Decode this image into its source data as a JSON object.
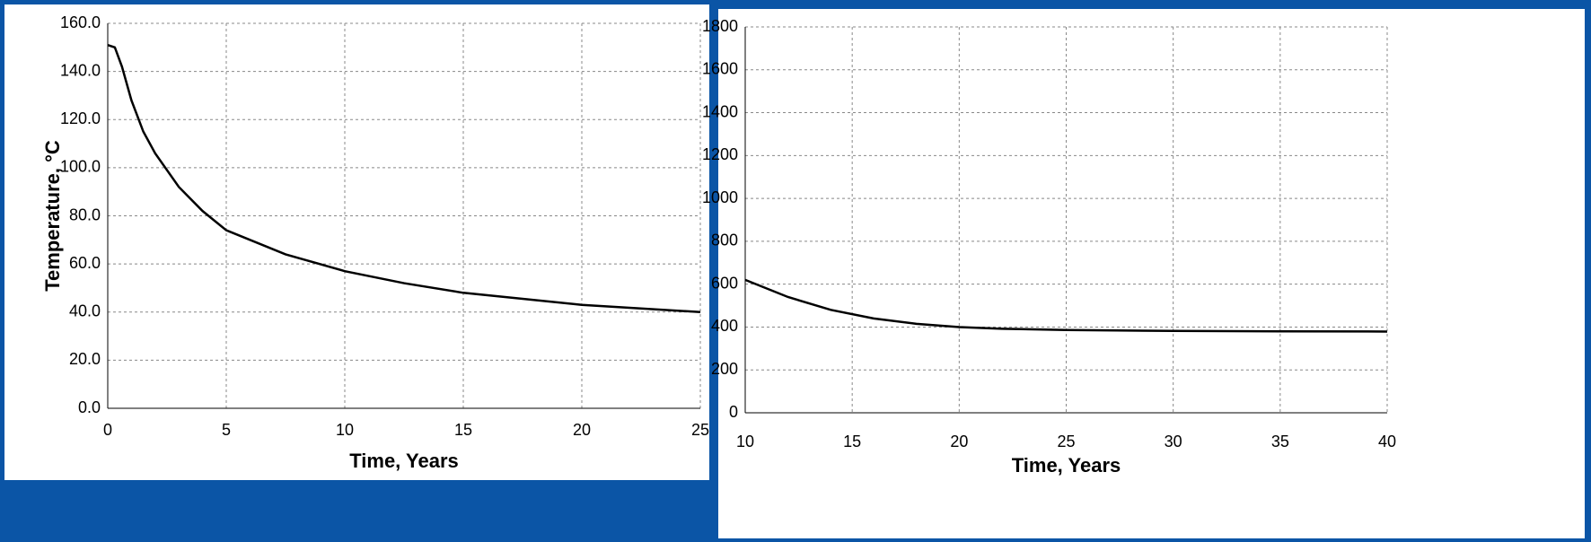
{
  "chart_data": [
    {
      "type": "line",
      "y_label": "Temperature, °C",
      "x_label": "Time, Years",
      "x": [
        0,
        0.3,
        0.6,
        1,
        1.5,
        2,
        3,
        4,
        5,
        7.5,
        10,
        12.5,
        15,
        20,
        25
      ],
      "series": [
        {
          "color": "#000000",
          "values": [
            151,
            150,
            142,
            128,
            115,
            106,
            92,
            82,
            74,
            64,
            57,
            52,
            48,
            43,
            40
          ]
        }
      ],
      "xlim": [
        0,
        25
      ],
      "xticks": [
        0,
        5,
        10,
        15,
        20,
        25
      ],
      "ylim": [
        0,
        160
      ],
      "yticks": [
        {
          "value": 0,
          "label": "0.0"
        },
        {
          "value": 20,
          "label": "20.0"
        },
        {
          "value": 40,
          "label": "40.0"
        },
        {
          "value": 60,
          "label": "60.0"
        },
        {
          "value": 80,
          "label": "80.0"
        },
        {
          "value": 100,
          "label": "100.0"
        },
        {
          "value": 120,
          "label": "120.0"
        },
        {
          "value": 140,
          "label": "140.0"
        },
        {
          "value": 160,
          "label": "160.0"
        }
      ],
      "grid": true
    },
    {
      "type": "line",
      "x_label": "Time, Years",
      "x": [
        10,
        12,
        14,
        16,
        18,
        20,
        22,
        25,
        30,
        35,
        40
      ],
      "series": [
        {
          "color": "#000000",
          "values": [
            620,
            540,
            480,
            440,
            415,
            400,
            392,
            386,
            382,
            380,
            379
          ]
        }
      ],
      "xlim": [
        10,
        40
      ],
      "xticks": [
        10,
        15,
        20,
        25,
        30,
        35,
        40
      ],
      "ylim": [
        0,
        1800
      ],
      "yticks": [
        0,
        200,
        400,
        600,
        800,
        1000,
        1200,
        1400,
        1600,
        1800
      ],
      "grid": true
    }
  ]
}
